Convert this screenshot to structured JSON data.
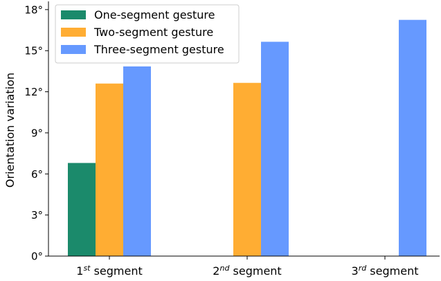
{
  "chart_data": {
    "type": "bar",
    "title": "",
    "xlabel": "",
    "ylabel": "Orientation variation",
    "ylim": [
      0,
      18.6
    ],
    "yticks": [
      0,
      3,
      6,
      9,
      12,
      15,
      18
    ],
    "ytick_labels": [
      "0°",
      "3°",
      "6°",
      "9°",
      "12°",
      "15°",
      "18°"
    ],
    "categories": [
      {
        "prefix": "1",
        "sup": "st",
        "suffix": " segment"
      },
      {
        "prefix": "2",
        "sup": "nd",
        "suffix": " segment"
      },
      {
        "prefix": "3",
        "sup": "rd",
        "suffix": " segment"
      }
    ],
    "series": [
      {
        "name": "One-segment gesture",
        "color": "#1b8a6b",
        "values": [
          6.8,
          null,
          null
        ]
      },
      {
        "name": "Two-segment gesture",
        "color": "#ffad33",
        "values": [
          12.6,
          12.65,
          null
        ]
      },
      {
        "name": "Three-segment gesture",
        "color": "#6699ff",
        "values": [
          13.85,
          15.65,
          17.25
        ]
      }
    ],
    "legend_position": "top-left",
    "grid": false
  }
}
